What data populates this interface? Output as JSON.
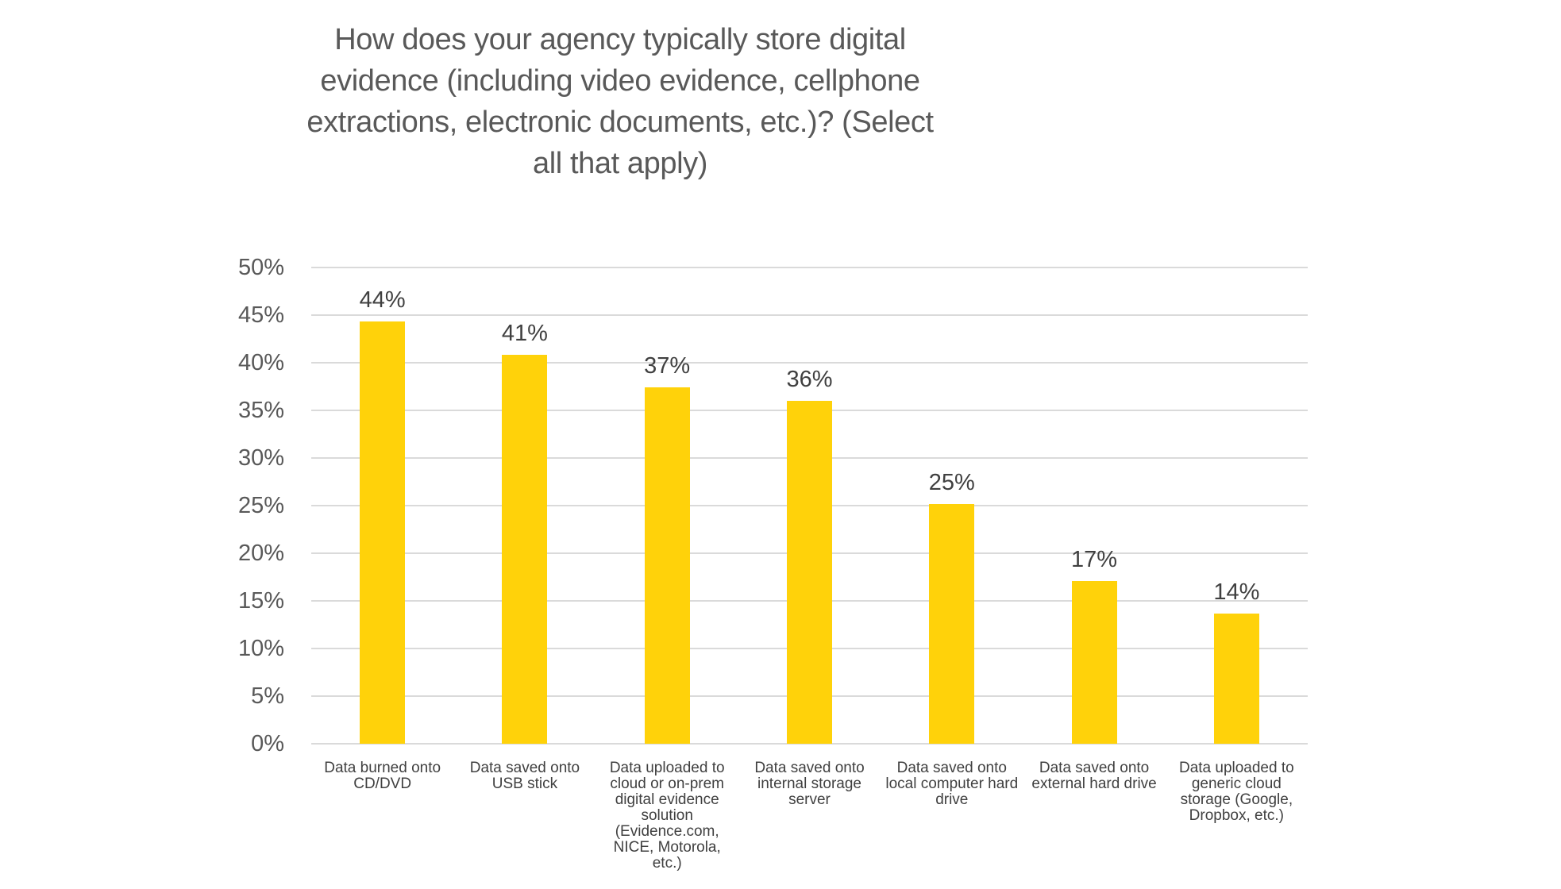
{
  "title": {
    "full": "How does your agency typically store digital evidence (including video evidence, cellphone extractions, electronic documents, etc.)? (Select all that apply)",
    "lines": [
      "How does your agency typically store digital",
      "evidence (including video evidence, cellphone",
      "extractions, electronic documents, etc.)? (Select",
      "all that apply)"
    ]
  },
  "chart_data": {
    "type": "bar",
    "title": "How does your agency typically store digital evidence (including video evidence, cellphone extractions, electronic documents, etc.)? (Select all that apply)",
    "categories": [
      "Data burned onto CD/DVD",
      "Data saved onto USB stick",
      "Data uploaded to cloud or on-prem digital evidence solution (Evidence.com, NICE, Motorola, etc.)",
      "Data saved onto internal storage server",
      "Data saved onto local computer hard drive",
      "Data saved onto external hard drive",
      "Data uploaded to generic cloud storage (Google, Dropbox, etc.)"
    ],
    "category_label_lines": [
      [
        "Data burned onto",
        "CD/DVD"
      ],
      [
        "Data saved onto",
        "USB stick"
      ],
      [
        "Data uploaded to",
        "cloud or on-prem",
        "digital evidence",
        "solution",
        "(Evidence.com,",
        "NICE, Motorola,",
        "etc.)"
      ],
      [
        "Data saved onto",
        "internal storage",
        "server"
      ],
      [
        "Data saved onto",
        "local computer hard",
        "drive"
      ],
      [
        "Data saved onto",
        "external hard drive"
      ],
      [
        "Data uploaded to",
        "generic cloud",
        "storage (Google,",
        "Dropbox, etc.)"
      ]
    ],
    "values": [
      44,
      41,
      37,
      36,
      25,
      17,
      14
    ],
    "values_precise": [
      44.3,
      40.8,
      37.4,
      36.0,
      25.2,
      17.1,
      13.7
    ],
    "data_labels": [
      "44%",
      "41%",
      "37%",
      "36%",
      "25%",
      "17%",
      "14%"
    ],
    "xlabel": "",
    "ylabel": "",
    "ylim": [
      0,
      50
    ],
    "ytick_step": 5,
    "ytick_labels": [
      "50%",
      "45%",
      "40%",
      "35%",
      "30%",
      "25%",
      "20%",
      "15%",
      "10%",
      "5%",
      "0%"
    ],
    "grid": "horizontal",
    "legend": "none"
  },
  "colors": {
    "bar": "#FFD20A",
    "title_text": "#595959",
    "axis_text": "#595959",
    "data_label_text": "#404040",
    "gridline": "#DADADA",
    "background": "#FFFFFF"
  }
}
